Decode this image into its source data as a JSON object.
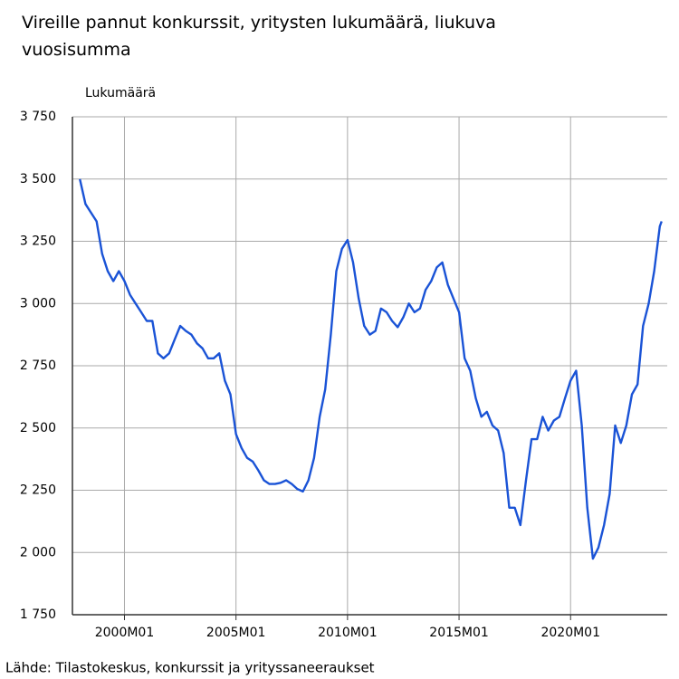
{
  "chart_data": {
    "type": "line",
    "title": "Vireille pannut konkurssit, yritysten lukumäärä, liukuva vuosisumma",
    "ylabel": "Lukumäärä",
    "source": "Lähde: Tilastokeskus, konkurssit ja yrityssaneeraukset",
    "grid": true,
    "x": [
      "1998M01",
      "1998M04",
      "1998M07",
      "1998M10",
      "1999M01",
      "1999M04",
      "1999M07",
      "1999M10",
      "2000M01",
      "2000M04",
      "2000M07",
      "2000M10",
      "2001M01",
      "2001M04",
      "2001M07",
      "2001M10",
      "2002M01",
      "2002M04",
      "2002M07",
      "2002M10",
      "2003M01",
      "2003M04",
      "2003M07",
      "2003M10",
      "2004M01",
      "2004M04",
      "2004M07",
      "2004M10",
      "2005M01",
      "2005M04",
      "2005M07",
      "2005M10",
      "2006M01",
      "2006M04",
      "2006M07",
      "2006M10",
      "2007M01",
      "2007M04",
      "2007M07",
      "2007M10",
      "2008M01",
      "2008M04",
      "2008M07",
      "2008M10",
      "2009M01",
      "2009M04",
      "2009M07",
      "2009M10",
      "2010M01",
      "2010M04",
      "2010M07",
      "2010M10",
      "2011M01",
      "2011M04",
      "2011M07",
      "2011M10",
      "2012M01",
      "2012M04",
      "2012M07",
      "2012M10",
      "2013M01",
      "2013M04",
      "2013M07",
      "2013M10",
      "2014M01",
      "2014M04",
      "2014M07",
      "2014M10",
      "2015M01",
      "2015M04",
      "2015M07",
      "2015M10",
      "2016M01",
      "2016M04",
      "2016M07",
      "2016M10",
      "2017M01",
      "2017M04",
      "2017M07",
      "2017M10",
      "2018M01",
      "2018M04",
      "2018M07",
      "2018M10",
      "2019M01",
      "2019M04",
      "2019M07",
      "2019M10",
      "2020M01",
      "2020M04",
      "2020M07",
      "2020M10",
      "2021M01",
      "2021M04",
      "2021M07",
      "2021M10",
      "2022M01",
      "2022M04",
      "2022M07",
      "2022M10",
      "2023M01",
      "2023M04",
      "2023M07",
      "2023M10",
      "2024M01",
      "2024M02"
    ],
    "series": [
      {
        "name": "Lukumäärä",
        "color": "#1a53d6",
        "values": [
          3500,
          3400,
          3365,
          3330,
          3200,
          3130,
          3090,
          3130,
          3090,
          3035,
          3000,
          2965,
          2930,
          2930,
          2800,
          2780,
          2800,
          2855,
          2910,
          2890,
          2875,
          2840,
          2820,
          2780,
          2780,
          2800,
          2690,
          2635,
          2475,
          2420,
          2380,
          2365,
          2330,
          2290,
          2275,
          2275,
          2280,
          2290,
          2275,
          2255,
          2245,
          2290,
          2380,
          2545,
          2655,
          2875,
          3130,
          3220,
          3255,
          3165,
          3020,
          2910,
          2875,
          2890,
          2980,
          2965,
          2930,
          2905,
          2945,
          3000,
          2965,
          2980,
          3055,
          3090,
          3145,
          3165,
          3075,
          3020,
          2965,
          2780,
          2730,
          2620,
          2545,
          2565,
          2510,
          2490,
          2400,
          2180,
          2180,
          2110,
          2290,
          2455,
          2455,
          2545,
          2490,
          2530,
          2545,
          2620,
          2690,
          2730,
          2510,
          2180,
          1975,
          2020,
          2110,
          2235,
          2510,
          2440,
          2510,
          2635,
          2675,
          2910,
          3000,
          3130,
          3310,
          3330
        ]
      }
    ],
    "xlim": [
      "1997M09",
      "2024M05"
    ],
    "xticks": [
      "2000M01",
      "2005M01",
      "2010M01",
      "2015M01",
      "2020M01"
    ],
    "ylim": [
      1750,
      3750
    ],
    "yticks": [
      {
        "value": 1750,
        "label": "1 750"
      },
      {
        "value": 2000,
        "label": "2 000"
      },
      {
        "value": 2250,
        "label": "2 250"
      },
      {
        "value": 2500,
        "label": "2 500"
      },
      {
        "value": 2750,
        "label": "2 750"
      },
      {
        "value": 3000,
        "label": "3 000"
      },
      {
        "value": 3250,
        "label": "3 250"
      },
      {
        "value": 3500,
        "label": "3 500"
      },
      {
        "value": 3750,
        "label": "3 750"
      }
    ]
  }
}
